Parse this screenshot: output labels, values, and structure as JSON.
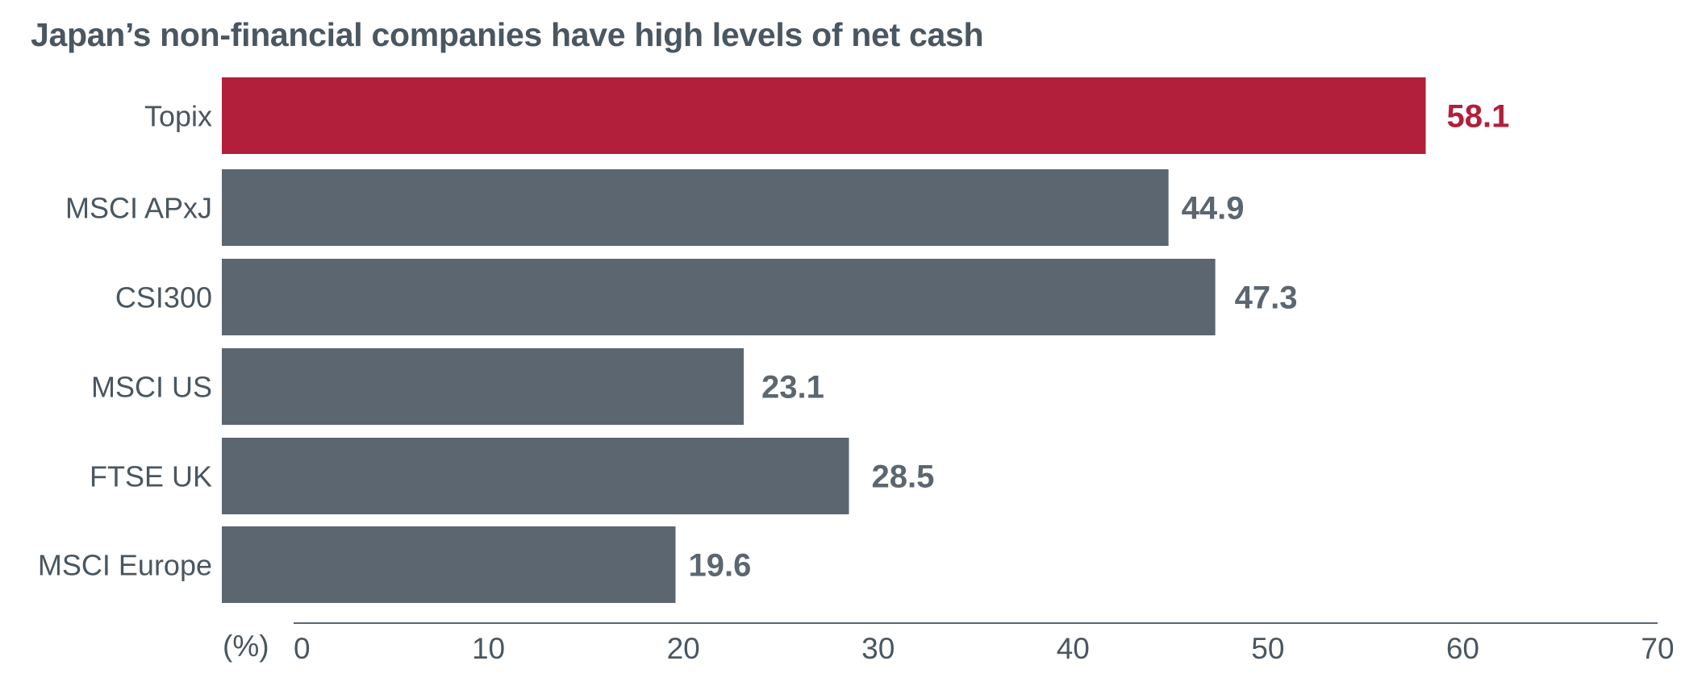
{
  "chart_data": {
    "type": "bar",
    "orientation": "horizontal",
    "title": "Japan’s non-financial companies have high levels of net cash",
    "unit_label": "(%)",
    "categories": [
      "Topix",
      "MSCI APxJ",
      "CSI300",
      "MSCI US",
      "FTSE UK",
      "MSCI Europe"
    ],
    "values": [
      58.1,
      44.9,
      47.3,
      23.1,
      28.5,
      19.6
    ],
    "xlim": [
      0,
      70
    ],
    "xticks": [
      0,
      10,
      20,
      30,
      40,
      50,
      60,
      70
    ],
    "highlight_category": "Topix",
    "grid": false
  },
  "colors": {
    "highlight": "#b21f3a",
    "bar": "#5c6670",
    "text": "#4a5660",
    "axis": "#5c6670"
  }
}
